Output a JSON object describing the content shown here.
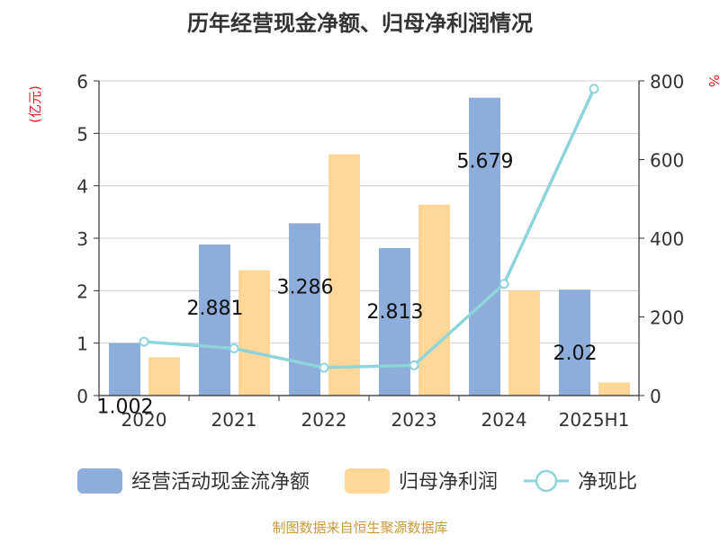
{
  "chart_data": {
    "type": "bar",
    "title": "历年经营现金净额、归母净利润情况",
    "y_left_unit": "(亿元)",
    "y_right_unit": "%",
    "categories": [
      "2020",
      "2021",
      "2022",
      "2023",
      "2024",
      "2025H1"
    ],
    "series": [
      {
        "name": "经营活动现金流净额",
        "type": "bar",
        "axis": "left",
        "color": "#8EADDB",
        "values": [
          1.002,
          2.881,
          3.286,
          2.813,
          5.679,
          2.02
        ],
        "labels": [
          "1.002",
          "2.881",
          "3.286",
          "2.813",
          "5.679",
          "2.02"
        ]
      },
      {
        "name": "归母净利润",
        "type": "bar",
        "axis": "left",
        "color": "#FFD899",
        "values": [
          0.73,
          2.39,
          4.6,
          3.64,
          2.0,
          0.25
        ]
      },
      {
        "name": "净现比",
        "type": "line",
        "axis": "right",
        "color": "#8ED4DB",
        "values": [
          137,
          120,
          71,
          77,
          284,
          780
        ]
      }
    ],
    "y_left": {
      "min": 0,
      "max": 6,
      "ticks": [
        "0",
        "1",
        "2",
        "3",
        "4",
        "5",
        "6"
      ]
    },
    "y_right": {
      "min": 0,
      "max": 800,
      "ticks": [
        "0",
        "200",
        "400",
        "600",
        "800"
      ]
    },
    "grid": true,
    "legend_position": "bottom"
  },
  "footer": {
    "source": "制图数据来自恒生聚源数据库"
  }
}
